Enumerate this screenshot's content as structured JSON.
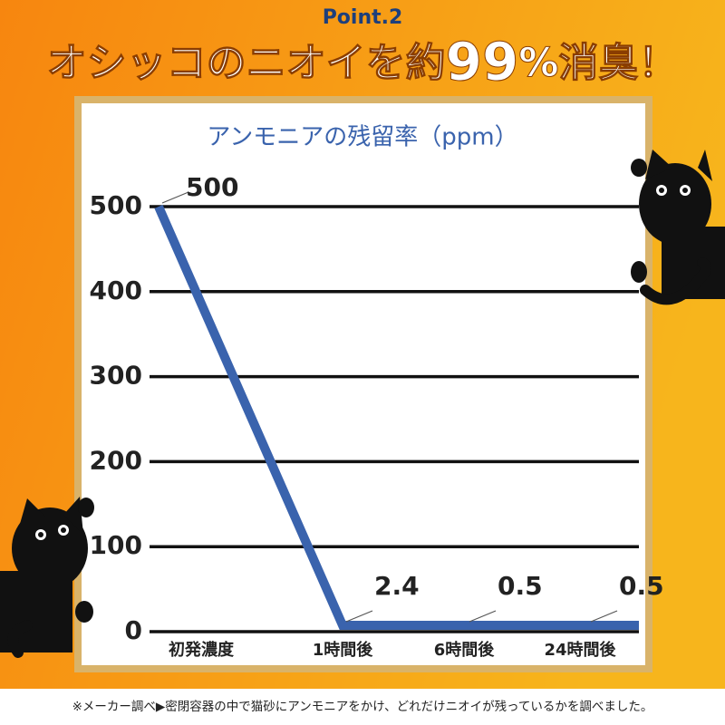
{
  "header": {
    "point": "Point.2",
    "headline_1": "オシッコのニオイを約",
    "headline_2": "99",
    "headline_3": "%消臭！"
  },
  "chart_data": {
    "type": "line",
    "title": "アンモニアの残留率（ppm）",
    "categories": [
      "初発濃度",
      "1時間後",
      "6時間後",
      "24時間後"
    ],
    "series": [
      {
        "name": "アンモニア",
        "color": "#3a63ad",
        "values": [
          500,
          2.4,
          0.5,
          0.5
        ]
      }
    ],
    "ylim": [
      0,
      500
    ],
    "yticks": [
      0,
      100,
      200,
      300,
      400,
      500
    ],
    "grid": true
  },
  "footnote": "※メーカー調べ▶密閉容器の中で猫砂にアンモニアをかけ、どれだけニオイが残っているかを調べました。"
}
